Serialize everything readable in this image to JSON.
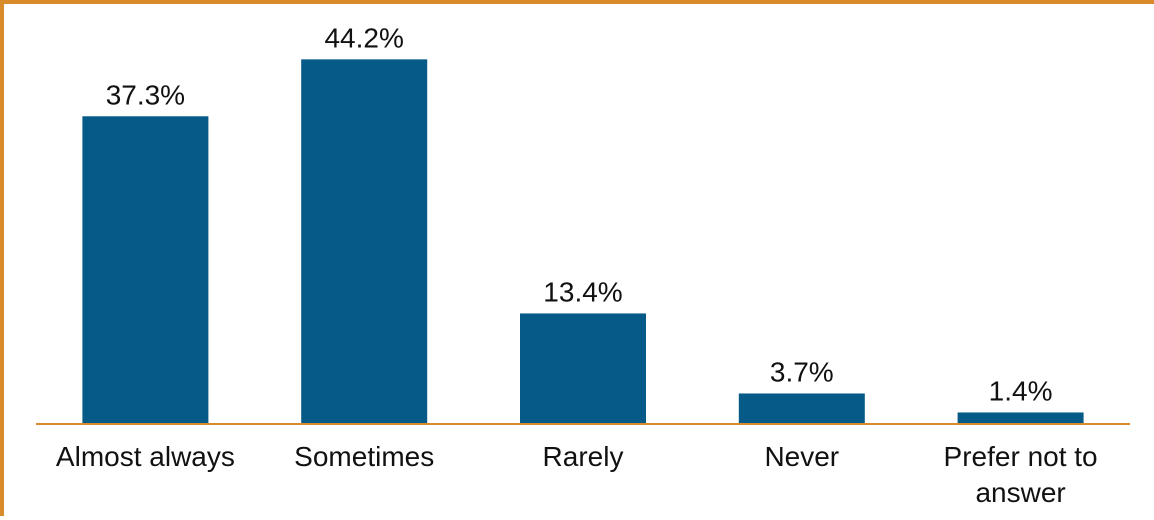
{
  "chart_data": {
    "type": "bar",
    "categories": [
      "Almost always",
      "Sometimes",
      "Rarely",
      "Never",
      "Prefer not to answer"
    ],
    "category_lines": [
      [
        "Almost always"
      ],
      [
        "Sometimes"
      ],
      [
        "Rarely"
      ],
      [
        "Never"
      ],
      [
        "Prefer not to",
        "answer"
      ]
    ],
    "values": [
      37.3,
      44.2,
      13.4,
      3.7,
      1.4
    ],
    "value_labels": [
      "37.3%",
      "44.2%",
      "13.4%",
      "3.7%",
      "1.4%"
    ],
    "title": "",
    "xlabel": "",
    "ylabel": "",
    "ylim": [
      0,
      48
    ],
    "grid": false,
    "legend": "none",
    "colors": {
      "bar": "#065a87",
      "axis": "#d98a2b",
      "frame": "#d98a2b",
      "text": "#111111"
    }
  }
}
